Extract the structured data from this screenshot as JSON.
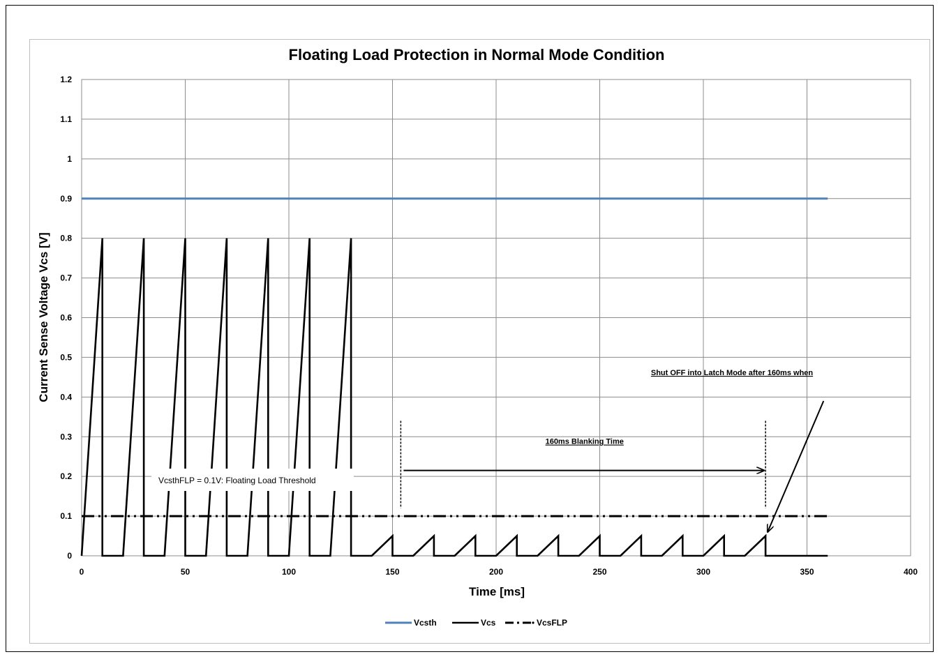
{
  "chart_data": {
    "type": "line",
    "title": "Floating Load Protection in Normal Mode Condition",
    "xlabel": "Time [ms]",
    "ylabel": "Current Sense Voltage  Vcs [V]",
    "xlim": [
      0,
      400
    ],
    "ylim": [
      0,
      1.2
    ],
    "x_ticks": [
      "0",
      "50",
      "100",
      "150",
      "200",
      "250",
      "300",
      "350",
      "400"
    ],
    "y_ticks": [
      "0",
      "0.1",
      "0.2",
      "0.3",
      "0.4",
      "0.5",
      "0.6",
      "0.7",
      "0.8",
      "0.9",
      "1",
      "1.1",
      "1.2"
    ],
    "grid": true,
    "legend_position": "bottom",
    "series": [
      {
        "name": "Vcsth",
        "color": "#4f81bd",
        "style": "solid",
        "x": [
          0,
          360
        ],
        "y": [
          0.9,
          0.9
        ]
      },
      {
        "name": "Vcs",
        "color": "#000000",
        "style": "solid",
        "x": [
          0,
          10,
          10,
          20,
          30,
          30,
          40,
          50,
          50,
          60,
          70,
          70,
          80,
          90,
          90,
          100,
          110,
          110,
          120,
          130,
          130,
          140,
          150,
          150,
          160,
          170,
          170,
          180,
          190,
          190,
          200,
          210,
          210,
          220,
          230,
          230,
          240,
          250,
          250,
          260,
          270,
          270,
          280,
          290,
          290,
          300,
          310,
          310,
          320,
          330,
          330,
          360
        ],
        "y": [
          0,
          0.8,
          0,
          0,
          0.8,
          0,
          0,
          0.8,
          0,
          0,
          0.8,
          0,
          0,
          0.8,
          0,
          0,
          0.8,
          0,
          0,
          0.8,
          0,
          0,
          0.05,
          0,
          0,
          0.05,
          0,
          0,
          0.05,
          0,
          0,
          0.05,
          0,
          0,
          0.05,
          0,
          0,
          0.05,
          0,
          0,
          0.05,
          0,
          0,
          0.05,
          0,
          0,
          0.05,
          0,
          0,
          0.05,
          0,
          0
        ]
      },
      {
        "name": "VcsFLP",
        "color": "#000000",
        "style": "dashdot",
        "x": [
          0,
          360
        ],
        "y": [
          0.1,
          0.1
        ]
      }
    ],
    "annotations": {
      "threshold_label": "VcsthFLP = 0.1V: Floating Load Threshold",
      "blanking_label": "160ms Blanking Time",
      "shutoff_label": "Shut OFF into Latch  Mode after 160ms when"
    },
    "markers": {
      "blanking_start_x": 154,
      "blanking_end_x": 330,
      "marker_y_top": 0.34,
      "marker_y_bottom": 0.12,
      "arrow_y": 0.215,
      "shutoff_arrow_from": [
        358,
        0.39
      ],
      "shutoff_arrow_to": [
        331,
        0.06
      ]
    }
  }
}
